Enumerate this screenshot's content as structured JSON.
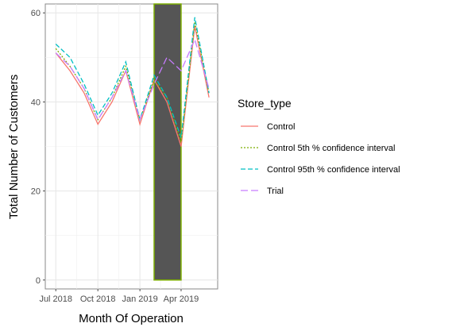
{
  "chart_data": {
    "type": "line",
    "xlabel": "Month Of Operation",
    "ylabel": "Total Number of Customers",
    "x": [
      "2018-07",
      "2018-08",
      "2018-09",
      "2018-10",
      "2018-11",
      "2018-12",
      "2019-01",
      "2019-02",
      "2019-03",
      "2019-04",
      "2019-05",
      "2019-06"
    ],
    "x_ticks": [
      {
        "x": "2018-07",
        "label": "Jul 2018"
      },
      {
        "x": "2018-10",
        "label": "Oct 2018"
      },
      {
        "x": "2019-01",
        "label": "Jan 2019"
      },
      {
        "x": "2019-04",
        "label": "Apr 2019"
      }
    ],
    "y_ticks": [
      0,
      20,
      40,
      60
    ],
    "xlim": [
      "2018-06-08",
      "2019-06-20"
    ],
    "ylim": [
      -2,
      62
    ],
    "grid": true,
    "legend_title": "Store_type",
    "legend_position": "right",
    "highlight_band": {
      "from": "2019-02",
      "to": "2019-04",
      "fill": "#555555",
      "stroke": "#7cae00"
    },
    "series": [
      {
        "name": "Control",
        "color": "#f8766d",
        "dash": "solid",
        "values": [
          51,
          47,
          42,
          35,
          40,
          47,
          35,
          45,
          40,
          30,
          57,
          41
        ]
      },
      {
        "name": "Control 5th % confidence interval",
        "color": "#7cae00",
        "dash": "dotted",
        "values": [
          52,
          48,
          43,
          36,
          41,
          48,
          36,
          45,
          41,
          31,
          58,
          42
        ]
      },
      {
        "name": "Control 95th % confidence interval",
        "color": "#00bfc4",
        "dash": "dashed",
        "values": [
          53,
          50,
          44,
          37,
          42,
          49,
          36,
          46,
          41,
          32,
          59,
          42
        ]
      },
      {
        "name": "Trial",
        "color": "#c77cff",
        "dash": "longdash",
        "values": [
          51,
          48,
          43,
          36,
          41,
          47,
          36,
          44,
          50,
          47,
          54,
          43
        ]
      }
    ]
  }
}
